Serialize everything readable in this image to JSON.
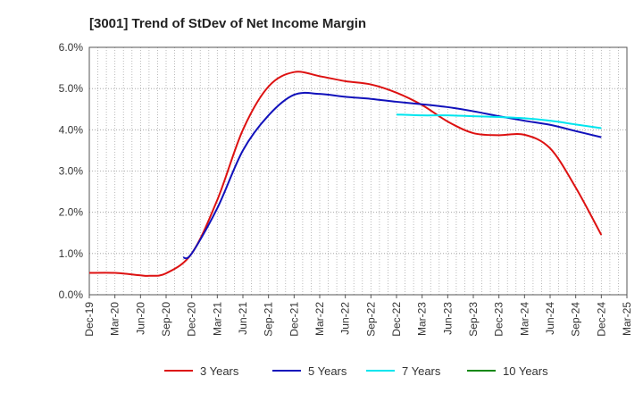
{
  "chart_data": {
    "type": "line",
    "title": "[3001]  Trend of StDev of Net Income Margin",
    "xlabel": "",
    "ylabel": "",
    "x_ticks": [
      "Dec-19",
      "Mar-20",
      "Jun-20",
      "Sep-20",
      "Dec-20",
      "Mar-21",
      "Jun-21",
      "Sep-21",
      "Dec-21",
      "Mar-22",
      "Jun-22",
      "Sep-22",
      "Dec-22",
      "Mar-23",
      "Jun-23",
      "Sep-23",
      "Dec-23",
      "Mar-24",
      "Jun-24",
      "Sep-24",
      "Dec-24",
      "Mar-25"
    ],
    "y_ticks": [
      "0.0%",
      "1.0%",
      "2.0%",
      "3.0%",
      "4.0%",
      "5.0%",
      "6.0%"
    ],
    "ylim": [
      0,
      6
    ],
    "y_unit": "%",
    "grid": true,
    "legend_position": "bottom",
    "series": [
      {
        "name": "3 Years",
        "color": "#dd1111",
        "points": [
          [
            "Dec-19",
            0.53
          ],
          [
            "Mar-20",
            0.53
          ],
          [
            "Jun-20",
            0.47
          ],
          [
            "Jul-20",
            0.46
          ],
          [
            "Sep-20",
            0.52
          ],
          [
            "Dec-20",
            1.0
          ],
          [
            "Mar-21",
            2.3
          ],
          [
            "Jun-21",
            4.0
          ],
          [
            "Sep-21",
            5.05
          ],
          [
            "Dec-21",
            5.4
          ],
          [
            "Mar-22",
            5.3
          ],
          [
            "Jun-22",
            5.18
          ],
          [
            "Sep-22",
            5.1
          ],
          [
            "Dec-22",
            4.9
          ],
          [
            "Mar-23",
            4.6
          ],
          [
            "Jun-23",
            4.2
          ],
          [
            "Sep-23",
            3.92
          ],
          [
            "Dec-23",
            3.87
          ],
          [
            "Mar-24",
            3.88
          ],
          [
            "Jun-24",
            3.55
          ],
          [
            "Sep-24",
            2.6
          ],
          [
            "Dec-24",
            1.45
          ]
        ]
      },
      {
        "name": "5 Years",
        "color": "#1111bb",
        "points": [
          [
            "Nov-20",
            0.9
          ],
          [
            "Dec-20",
            1.0
          ],
          [
            "Mar-21",
            2.1
          ],
          [
            "Jun-21",
            3.5
          ],
          [
            "Sep-21",
            4.35
          ],
          [
            "Dec-21",
            4.85
          ],
          [
            "Mar-22",
            4.87
          ],
          [
            "Jun-22",
            4.8
          ],
          [
            "Sep-22",
            4.75
          ],
          [
            "Dec-22",
            4.68
          ],
          [
            "Mar-23",
            4.62
          ],
          [
            "Jun-23",
            4.55
          ],
          [
            "Sep-23",
            4.45
          ],
          [
            "Dec-23",
            4.33
          ],
          [
            "Mar-24",
            4.22
          ],
          [
            "Jun-24",
            4.12
          ],
          [
            "Sep-24",
            3.97
          ],
          [
            "Dec-24",
            3.82
          ]
        ]
      },
      {
        "name": "7 Years",
        "color": "#00e5ee",
        "points": [
          [
            "Dec-22",
            4.37
          ],
          [
            "Mar-23",
            4.35
          ],
          [
            "Jun-23",
            4.35
          ],
          [
            "Sep-23",
            4.33
          ],
          [
            "Dec-23",
            4.31
          ],
          [
            "Mar-24",
            4.28
          ],
          [
            "Jun-24",
            4.22
          ],
          [
            "Sep-24",
            4.13
          ],
          [
            "Dec-24",
            4.04
          ]
        ]
      },
      {
        "name": "10 Years",
        "color": "#118811",
        "points": []
      }
    ]
  }
}
